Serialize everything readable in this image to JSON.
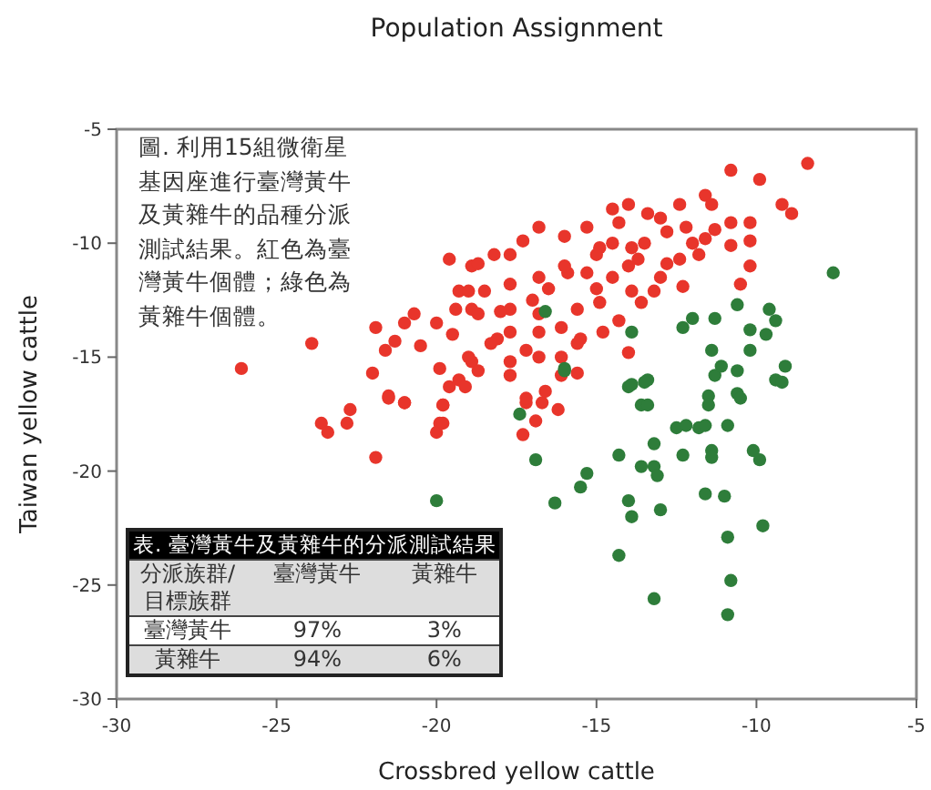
{
  "chart_data": {
    "type": "scatter",
    "title": "Population Assignment",
    "xlabel": "Crossbred yellow cattle",
    "ylabel": "Taiwan yellow cattle",
    "xlim": [
      -30,
      -5
    ],
    "xticks": [
      -30,
      -25,
      -20,
      -15,
      -10,
      -5
    ],
    "ylim": [
      -30,
      -5
    ],
    "yticks": [
      -30,
      -25,
      -20,
      -15,
      -10,
      -5
    ],
    "grid": false,
    "marker": "circle",
    "annotations": [
      "圖. 利用15組微衛星基因座進行臺灣黃牛及黃雜牛的品種分派測試結果。紅色為臺灣黃牛個體；綠色為黃雜牛個體。",
      "表. 臺灣黃牛及黃雜牛的分派測試結果",
      "分派族群/目標族群",
      "臺灣黃牛",
      "黃雜牛",
      "臺灣黃牛",
      "97%",
      "3%",
      "黃雜牛",
      "94%",
      "6%"
    ],
    "series": [
      {
        "color": "#e8352b",
        "x": [
          -26.1,
          -23.9,
          -23.6,
          -22.8,
          -22.7,
          -22.0,
          -21.9,
          -21.5,
          -21.0,
          -21.6,
          -21.3,
          -20.7,
          -20.0,
          -19.9,
          -19.8,
          -19.9,
          -19.6,
          -18.9,
          -18.2,
          -19.3,
          -18.9,
          -18.5,
          -17.7,
          -18.1,
          -18.9,
          -19.3,
          -17.7,
          -21.9,
          -21.5,
          -21.0,
          -20.0,
          -19.8,
          -19.8,
          -19.6,
          -19.1,
          -18.7,
          -17.7,
          -17.3,
          -17.2,
          -16.9,
          -16.7,
          -16.6,
          -16.2,
          -16.1,
          -15.6,
          -8.4,
          -10.8,
          -9.9,
          -11.6,
          -12.4,
          -9.2,
          -8.9,
          -11.4,
          -10.8,
          -10.2,
          -10.2,
          -10.8,
          -14.0,
          -14.5,
          -13.4,
          -13.0,
          -12.2,
          -11.3,
          -11.6,
          -12.4,
          -12.8,
          -12.3,
          -10.5,
          -15.3,
          -16.0,
          -16.8,
          -17.3,
          -18.7,
          -14.9,
          -13.9,
          -13.7,
          -15.3,
          -14.5,
          -15.9,
          -16.8,
          -17.7,
          -19.0,
          -19.4,
          -18.7,
          -17.7,
          -16.8,
          -15.6,
          -14.9,
          -13.9,
          -13.6,
          -13.2,
          -14.3,
          -14.8,
          -15.5,
          -16.1,
          -16.8,
          -17.2,
          -17.7,
          -18.3,
          -19.0,
          -16.8,
          -16.1,
          -15.6,
          -14.0,
          -17.2,
          -10.2,
          -14.3,
          -16.0,
          -15.0,
          -14.0,
          -13.0,
          -12.0,
          -13.5,
          -15.0,
          -16.5,
          -17.0,
          -18.0,
          -19.5,
          -20.5,
          -21.0,
          -14.5,
          -12.8,
          -11.8,
          -23.4
        ],
        "values": [
          -15.5,
          -14.4,
          -17.9,
          -17.9,
          -17.3,
          -15.7,
          -13.7,
          -16.8,
          -17.0,
          -14.7,
          -14.3,
          -13.1,
          -13.5,
          -15.5,
          -17.1,
          -17.9,
          -10.7,
          -11.0,
          -10.5,
          -12.1,
          -12.9,
          -12.1,
          -10.5,
          -14.2,
          -15.2,
          -16.0,
          -15.2,
          -19.4,
          -16.7,
          -17.0,
          -18.3,
          -17.9,
          -17.1,
          -16.3,
          -16.3,
          -15.6,
          -15.8,
          -18.4,
          -17.0,
          -17.8,
          -17.0,
          -16.5,
          -17.3,
          -15.8,
          -15.7,
          -6.5,
          -6.8,
          -7.2,
          -7.9,
          -8.3,
          -8.3,
          -8.7,
          -8.3,
          -9.1,
          -9.1,
          -9.9,
          -10.1,
          -8.3,
          -8.5,
          -8.7,
          -8.9,
          -9.3,
          -9.4,
          -9.8,
          -10.7,
          -10.9,
          -11.9,
          -11.8,
          -9.3,
          -9.7,
          -9.3,
          -9.9,
          -10.9,
          -10.2,
          -10.2,
          -10.7,
          -11.3,
          -11.5,
          -11.3,
          -11.5,
          -11.8,
          -12.1,
          -12.9,
          -13.1,
          -12.9,
          -13.1,
          -12.9,
          -12.6,
          -12.1,
          -12.6,
          -12.1,
          -13.4,
          -13.9,
          -14.2,
          -13.7,
          -13.9,
          -14.7,
          -13.9,
          -14.4,
          -15.0,
          -15.0,
          -15.0,
          -14.4,
          -14.8,
          -16.8,
          -11.0,
          -9.1,
          -11.0,
          -12.0,
          -11.0,
          -11.5,
          -10.0,
          -10.0,
          -10.5,
          -12.0,
          -12.5,
          -13.0,
          -14.0,
          -14.5,
          -13.5,
          -10.0,
          -9.5,
          -10.5,
          -18.3
        ]
      },
      {
        "color": "#2e7d3a",
        "x": [
          -20.0,
          -17.4,
          -16.9,
          -16.3,
          -15.5,
          -15.3,
          -16.0,
          -14.3,
          -14.3,
          -14.0,
          -14.0,
          -13.9,
          -13.6,
          -13.6,
          -13.4,
          -13.4,
          -13.2,
          -13.2,
          -13.1,
          -13.0,
          -13.2,
          -12.5,
          -12.2,
          -12.3,
          -11.8,
          -11.6,
          -11.6,
          -11.5,
          -11.5,
          -11.4,
          -11.4,
          -11.3,
          -11.0,
          -10.9,
          -10.9,
          -10.8,
          -10.9,
          -10.6,
          -10.5,
          -10.6,
          -11.1,
          -10.1,
          -9.9,
          -9.8,
          -9.4,
          -9.2,
          -9.1,
          -7.6,
          -10.6,
          -9.6,
          -9.4,
          -9.7,
          -10.2,
          -10.2,
          -11.3,
          -12.0,
          -12.3,
          -11.4,
          -13.9,
          -13.9,
          -13.5,
          -16.6,
          -16.0
        ],
        "values": [
          -21.3,
          -17.5,
          -19.5,
          -21.4,
          -20.7,
          -20.1,
          -15.5,
          -19.3,
          -23.7,
          -16.3,
          -21.3,
          -22.0,
          -19.8,
          -17.1,
          -17.1,
          -16.0,
          -18.8,
          -19.8,
          -20.2,
          -21.7,
          -25.6,
          -18.1,
          -18.0,
          -19.3,
          -18.1,
          -18.0,
          -21.0,
          -16.7,
          -17.1,
          -19.1,
          -19.4,
          -15.8,
          -21.1,
          -18.0,
          -22.9,
          -24.8,
          -26.3,
          -16.6,
          -16.8,
          -15.6,
          -15.4,
          -19.1,
          -19.5,
          -22.4,
          -16.0,
          -16.1,
          -15.4,
          -11.3,
          -12.7,
          -12.9,
          -13.4,
          -14.0,
          -13.8,
          -14.7,
          -13.3,
          -13.3,
          -13.7,
          -14.7,
          -13.9,
          -16.2,
          -16.1,
          -13.0,
          -15.6
        ]
      }
    ]
  }
}
